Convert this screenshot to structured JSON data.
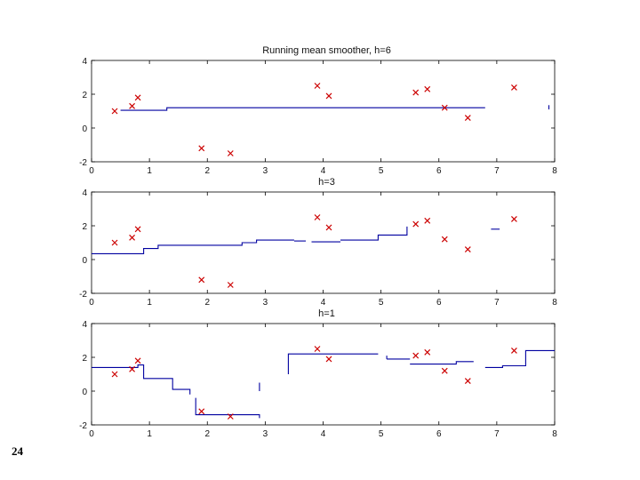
{
  "slide": {
    "number": "24"
  },
  "colors": {
    "line": "#0000a0",
    "marker": "#cc0000",
    "axis": "#000000"
  },
  "chart_data": [
    {
      "type": "line",
      "title": "Running mean smoother, h=6",
      "xlim": [
        0,
        8
      ],
      "ylim": [
        -2,
        4
      ],
      "xticks": [
        "0",
        "1",
        "2",
        "3",
        "4",
        "5",
        "6",
        "7",
        "8"
      ],
      "yticks": [
        "-2",
        "0",
        "2",
        "4"
      ],
      "points": [
        [
          0.4,
          1.0
        ],
        [
          0.7,
          1.3
        ],
        [
          0.8,
          1.8
        ],
        [
          1.9,
          -1.2
        ],
        [
          2.4,
          -1.5
        ],
        [
          3.9,
          2.5
        ],
        [
          4.1,
          1.9
        ],
        [
          5.6,
          2.1
        ],
        [
          5.8,
          2.3
        ],
        [
          6.1,
          1.2
        ],
        [
          6.5,
          0.6
        ],
        [
          7.3,
          2.4
        ]
      ],
      "steps": [
        [
          [
            0.5,
            1.05
          ],
          [
            1.3,
            1.05
          ],
          [
            1.3,
            1.2
          ],
          [
            6.8,
            1.2
          ]
        ],
        [
          [
            7.9,
            1.1
          ],
          [
            7.9,
            1.35
          ]
        ]
      ]
    },
    {
      "type": "line",
      "title": "h=3",
      "xlim": [
        0,
        8
      ],
      "ylim": [
        -2,
        4
      ],
      "xticks": [
        "0",
        "1",
        "2",
        "3",
        "4",
        "5",
        "6",
        "7",
        "8"
      ],
      "yticks": [
        "-2",
        "0",
        "2",
        "4"
      ],
      "points": [
        [
          0.4,
          1.0
        ],
        [
          0.7,
          1.3
        ],
        [
          0.8,
          1.8
        ],
        [
          1.9,
          -1.2
        ],
        [
          2.4,
          -1.5
        ],
        [
          3.9,
          2.5
        ],
        [
          4.1,
          1.9
        ],
        [
          5.6,
          2.1
        ],
        [
          5.8,
          2.3
        ],
        [
          6.1,
          1.2
        ],
        [
          6.5,
          0.6
        ],
        [
          7.3,
          2.4
        ]
      ],
      "steps": [
        [
          [
            0,
            0.35
          ],
          [
            0.9,
            0.35
          ],
          [
            0.9,
            0.65
          ],
          [
            1.15,
            0.65
          ],
          [
            1.15,
            0.85
          ],
          [
            2.6,
            0.85
          ],
          [
            2.6,
            1.0
          ],
          [
            2.85,
            1.0
          ],
          [
            2.85,
            1.15
          ],
          [
            3.5,
            1.15
          ]
        ],
        [
          [
            3.5,
            1.1
          ],
          [
            3.7,
            1.1
          ]
        ],
        [
          [
            3.8,
            1.05
          ],
          [
            4.3,
            1.05
          ]
        ],
        [
          [
            4.3,
            1.15
          ],
          [
            4.95,
            1.15
          ],
          [
            4.95,
            1.45
          ],
          [
            5.45,
            1.45
          ],
          [
            5.45,
            1.95
          ]
        ],
        [
          [
            6.9,
            1.8
          ],
          [
            7.05,
            1.8
          ]
        ]
      ]
    },
    {
      "type": "line",
      "title": "h=1",
      "xlim": [
        0,
        8
      ],
      "ylim": [
        -2,
        4
      ],
      "xticks": [
        "0",
        "1",
        "2",
        "3",
        "4",
        "5",
        "6",
        "7",
        "8"
      ],
      "yticks": [
        "-2",
        "0",
        "2",
        "4"
      ],
      "points": [
        [
          0.4,
          1.0
        ],
        [
          0.7,
          1.3
        ],
        [
          0.8,
          1.8
        ],
        [
          1.9,
          -1.2
        ],
        [
          2.4,
          -1.5
        ],
        [
          3.9,
          2.5
        ],
        [
          4.1,
          1.9
        ],
        [
          5.6,
          2.1
        ],
        [
          5.8,
          2.3
        ],
        [
          6.1,
          1.2
        ],
        [
          6.5,
          0.6
        ],
        [
          7.3,
          2.4
        ]
      ],
      "steps": [
        [
          [
            0,
            1.4
          ],
          [
            0.8,
            1.4
          ],
          [
            0.8,
            1.55
          ],
          [
            0.9,
            1.55
          ],
          [
            0.9,
            0.75
          ],
          [
            1.4,
            0.75
          ],
          [
            1.4,
            0.1
          ],
          [
            1.7,
            0.1
          ],
          [
            1.7,
            -0.2
          ]
        ],
        [
          [
            1.8,
            -0.4
          ],
          [
            1.8,
            -1.4
          ],
          [
            2.9,
            -1.4
          ],
          [
            2.9,
            -1.6
          ]
        ],
        [
          [
            2.9,
            0.0
          ],
          [
            2.9,
            0.5
          ]
        ],
        [
          [
            3.4,
            1.0
          ],
          [
            3.4,
            2.2
          ],
          [
            4.95,
            2.2
          ]
        ],
        [
          [
            5.1,
            1.9
          ],
          [
            5.1,
            2.1
          ]
        ],
        [
          [
            5.1,
            1.9
          ],
          [
            5.5,
            1.9
          ]
        ],
        [
          [
            5.5,
            1.6
          ],
          [
            6.3,
            1.6
          ],
          [
            6.3,
            1.75
          ],
          [
            6.6,
            1.75
          ]
        ],
        [
          [
            6.8,
            1.4
          ],
          [
            7.1,
            1.4
          ],
          [
            7.1,
            1.5
          ],
          [
            7.5,
            1.5
          ],
          [
            7.5,
            2.0
          ],
          [
            7.5,
            2.4
          ],
          [
            8.0,
            2.4
          ]
        ]
      ]
    }
  ]
}
